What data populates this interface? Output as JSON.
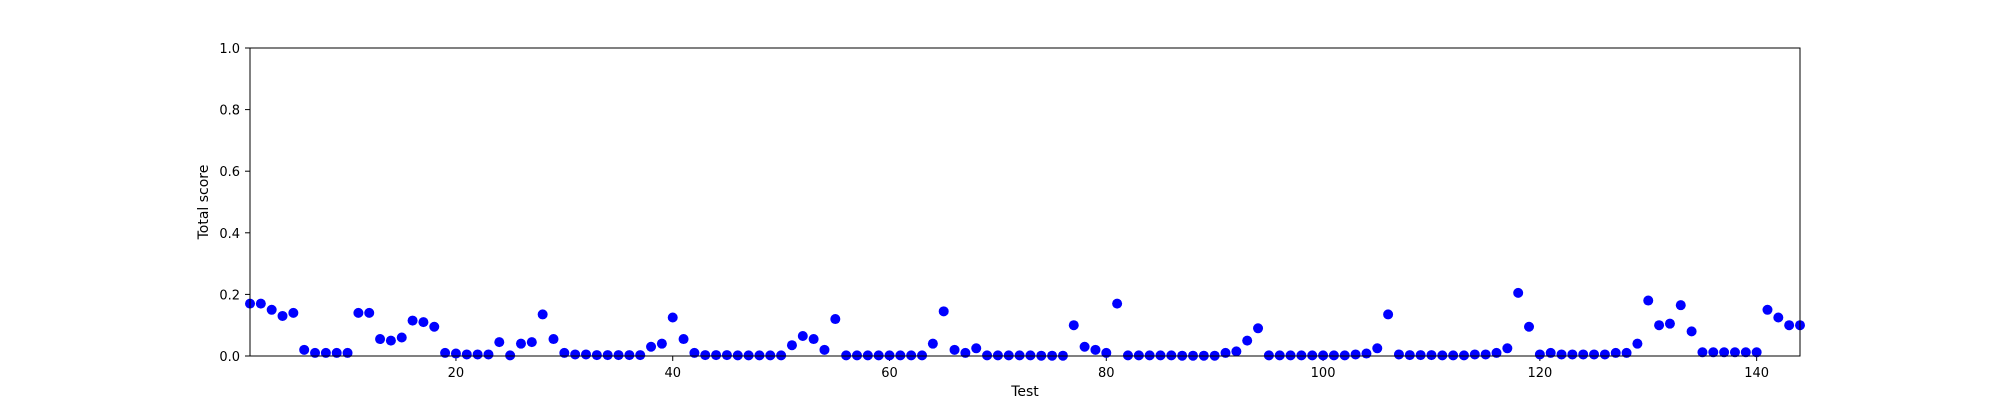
{
  "chart_data": {
    "type": "scatter",
    "xlabel": "Test",
    "ylabel": "Total score",
    "xlim": [
      1,
      144
    ],
    "ylim": [
      0.0,
      1.0
    ],
    "grid": false,
    "marker_color": "#0000ff",
    "x_ticks": [
      20,
      40,
      60,
      80,
      100,
      120,
      140
    ],
    "y_ticks": [
      0.0,
      0.2,
      0.4,
      0.6,
      0.8,
      1.0
    ],
    "x_tick_labels": [
      "20",
      "40",
      "60",
      "80",
      "100",
      "120",
      "140"
    ],
    "y_tick_labels": [
      "0.0",
      "0.2",
      "0.4",
      "0.6",
      "0.8",
      "1.0"
    ],
    "x": [
      1,
      2,
      3,
      4,
      5,
      6,
      7,
      8,
      9,
      10,
      11,
      12,
      13,
      14,
      15,
      16,
      17,
      18,
      19,
      20,
      21,
      22,
      23,
      24,
      25,
      26,
      27,
      28,
      29,
      30,
      31,
      32,
      33,
      34,
      35,
      36,
      37,
      38,
      39,
      40,
      41,
      42,
      43,
      44,
      45,
      46,
      47,
      48,
      49,
      50,
      51,
      52,
      53,
      54,
      55,
      56,
      57,
      58,
      59,
      60,
      61,
      62,
      63,
      64,
      65,
      66,
      67,
      68,
      69,
      70,
      71,
      72,
      73,
      74,
      75,
      76,
      77,
      78,
      79,
      80,
      81,
      82,
      83,
      84,
      85,
      86,
      87,
      88,
      89,
      90,
      91,
      92,
      93,
      94,
      95,
      96,
      97,
      98,
      99,
      100,
      101,
      102,
      103,
      104,
      105,
      106,
      107,
      108,
      109,
      110,
      111,
      112,
      113,
      114,
      115,
      116,
      117,
      118,
      119,
      120,
      121,
      122,
      123,
      124,
      125,
      126,
      127,
      128,
      129,
      130,
      131,
      132,
      133,
      134,
      135,
      136,
      137,
      138,
      139,
      140,
      141,
      142,
      143,
      144
    ],
    "y": [
      0.17,
      0.17,
      0.15,
      0.13,
      0.14,
      0.02,
      0.01,
      0.01,
      0.01,
      0.01,
      0.14,
      0.14,
      0.055,
      0.05,
      0.06,
      0.115,
      0.11,
      0.095,
      0.01,
      0.008,
      0.005,
      0.005,
      0.005,
      0.045,
      0.002,
      0.04,
      0.045,
      0.135,
      0.055,
      0.01,
      0.005,
      0.005,
      0.003,
      0.003,
      0.003,
      0.003,
      0.003,
      0.03,
      0.04,
      0.125,
      0.055,
      0.01,
      0.003,
      0.003,
      0.003,
      0.002,
      0.002,
      0.002,
      0.002,
      0.002,
      0.035,
      0.065,
      0.055,
      0.02,
      0.12,
      0.002,
      0.002,
      0.002,
      0.002,
      0.002,
      0.002,
      0.002,
      0.002,
      0.04,
      0.145,
      0.02,
      0.01,
      0.025,
      0.002,
      0.002,
      0.002,
      0.002,
      0.002,
      0.001,
      0.001,
      0.001,
      0.1,
      0.03,
      0.02,
      0.01,
      0.17,
      0.002,
      0.002,
      0.002,
      0.002,
      0.002,
      0.001,
      0.001,
      0.001,
      0.001,
      0.01,
      0.015,
      0.05,
      0.09,
      0.002,
      0.002,
      0.002,
      0.002,
      0.002,
      0.002,
      0.002,
      0.002,
      0.005,
      0.008,
      0.025,
      0.135,
      0.005,
      0.003,
      0.003,
      0.003,
      0.002,
      0.002,
      0.002,
      0.005,
      0.005,
      0.01,
      0.025,
      0.205,
      0.095,
      0.005,
      0.01,
      0.005,
      0.005,
      0.005,
      0.005,
      0.005,
      0.01,
      0.01,
      0.04,
      0.18,
      0.1,
      0.105,
      0.165,
      0.08,
      0.012,
      0.012,
      0.012,
      0.012,
      0.012,
      0.012,
      0.15,
      0.125,
      0.1,
      0.1
    ]
  }
}
